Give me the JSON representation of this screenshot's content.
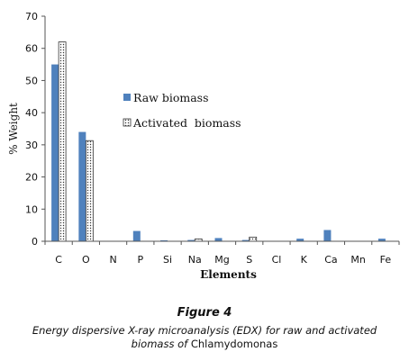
{
  "chart_data": {
    "type": "bar",
    "categories": [
      "C",
      "O",
      "N",
      "P",
      "Si",
      "Na",
      "Mg",
      "S",
      "Cl",
      "K",
      "Ca",
      "Mn",
      "Fe"
    ],
    "series": [
      {
        "name": "Raw biomass",
        "values": [
          55,
          34,
          0,
          3.2,
          0.3,
          0.4,
          1.0,
          0.4,
          0.1,
          0.8,
          3.5,
          0.1,
          0.8
        ],
        "color": "#4f81bd",
        "pattern": "solid"
      },
      {
        "name": "Activated  biomass",
        "values": [
          62,
          31.3,
          0,
          0,
          0,
          0.7,
          0,
          1.3,
          0,
          0,
          0,
          0,
          0
        ],
        "color": "#ffffff",
        "pattern": "dotted"
      }
    ],
    "xlabel": "Elements",
    "ylabel": "% Weight",
    "ylim": [
      0,
      70
    ],
    "yticks": [
      0,
      10,
      20,
      30,
      40,
      50,
      60,
      70
    ],
    "grid": false,
    "legend": "center-right"
  },
  "caption": {
    "title": "Figure 4",
    "line1": "Energy dispersive X-ray microanalysis (EDX) for raw and activated",
    "line2_prefix": "biomass of ",
    "line2_organism": "Chlamydomonas"
  }
}
